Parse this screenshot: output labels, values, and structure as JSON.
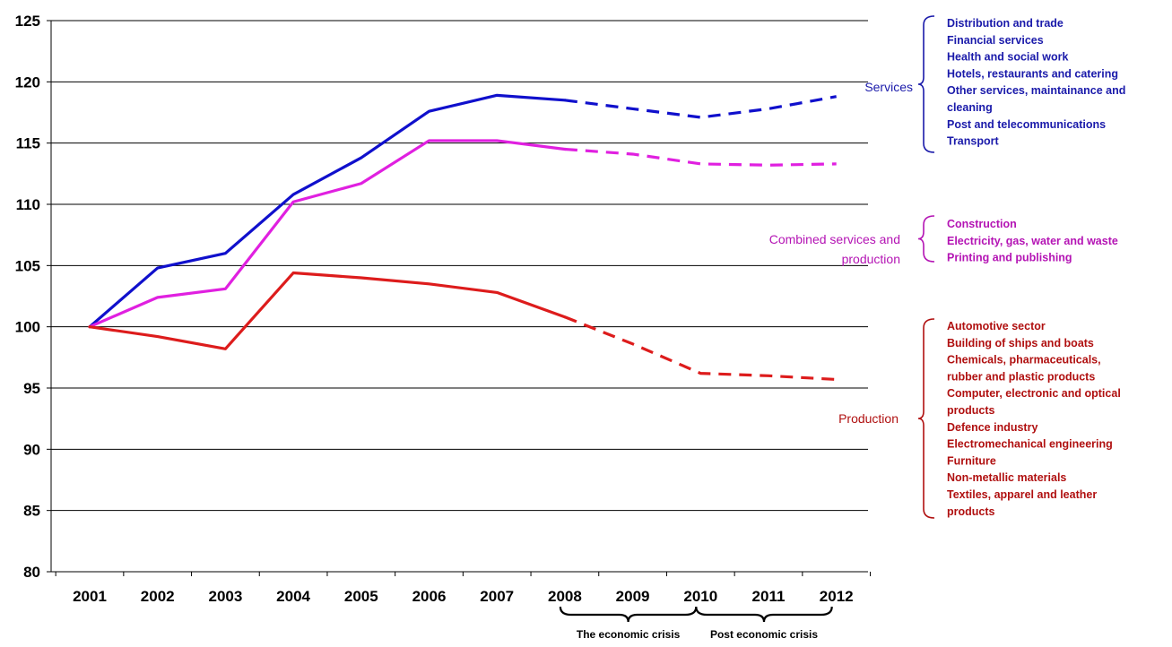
{
  "colors": {
    "services": "#1010cc",
    "combined": "#e020e0",
    "production": "#dd1c1c",
    "services_text": "#1a1aaa",
    "combined_text": "#b414b4",
    "production_text": "#b01010"
  },
  "chart_data": {
    "type": "line",
    "title": "",
    "xlabel": "",
    "ylabel": "",
    "x": [
      "2001",
      "2002",
      "2003",
      "2004",
      "2005",
      "2006",
      "2007",
      "2008",
      "2009",
      "2010",
      "2011",
      "2012"
    ],
    "ylim": [
      80,
      125
    ],
    "yticks": [
      80,
      85,
      90,
      95,
      100,
      105,
      110,
      115,
      120,
      125
    ],
    "grid": true,
    "series": [
      {
        "name": "Services",
        "color": "#1010cc",
        "solid": [
          100,
          104.8,
          106,
          110.8,
          113.8,
          117.6,
          118.9,
          118.5
        ],
        "dashed": [
          null,
          null,
          null,
          null,
          null,
          null,
          null,
          118.5,
          117.8,
          117.1,
          117.8,
          118.8
        ]
      },
      {
        "name": "Combined services and production",
        "color": "#e020e0",
        "solid": [
          100,
          102.4,
          103.1,
          110.2,
          111.7,
          115.2,
          115.2,
          114.5
        ],
        "dashed": [
          null,
          null,
          null,
          null,
          null,
          null,
          null,
          114.5,
          114.1,
          113.3,
          113.2,
          113.3
        ]
      },
      {
        "name": "Production",
        "color": "#dd1c1c",
        "solid": [
          100,
          99.2,
          98.2,
          104.4,
          104.0,
          103.5,
          102.8,
          100.8
        ],
        "dashed": [
          null,
          null,
          null,
          null,
          null,
          null,
          null,
          100.8,
          98.6,
          96.2,
          96.0,
          95.7
        ]
      }
    ],
    "groups": [
      {
        "label": "Services",
        "color": "#1a1aaa",
        "sectors": [
          "Distribution and trade",
          "Financial services",
          "Health and social work",
          "Hotels, restaurants and catering",
          "Other services, maintainance and",
          "cleaning",
          "Post and telecommunications",
          "Transport"
        ]
      },
      {
        "label_lines": [
          "Combined services and",
          "production"
        ],
        "color": "#b414b4",
        "sectors": [
          "Construction",
          "Electricity, gas, water and waste",
          "Printing and publishing"
        ]
      },
      {
        "label": "Production",
        "color": "#b01010",
        "sectors": [
          "Automotive sector",
          "Building of ships and boats",
          "Chemicals, pharmaceuticals,",
          "rubber and plastic products",
          "Computer, electronic and optical",
          "products",
          "Defence industry",
          "Electromechanical engineering",
          "Furniture",
          "Non-metallic materials",
          "Textiles, apparel and leather",
          "products"
        ]
      }
    ],
    "periods": [
      {
        "label": "The economic crisis",
        "from": "2008",
        "to": "2010"
      },
      {
        "label": "Post economic crisis",
        "from": "2010",
        "to": "2012"
      }
    ]
  }
}
